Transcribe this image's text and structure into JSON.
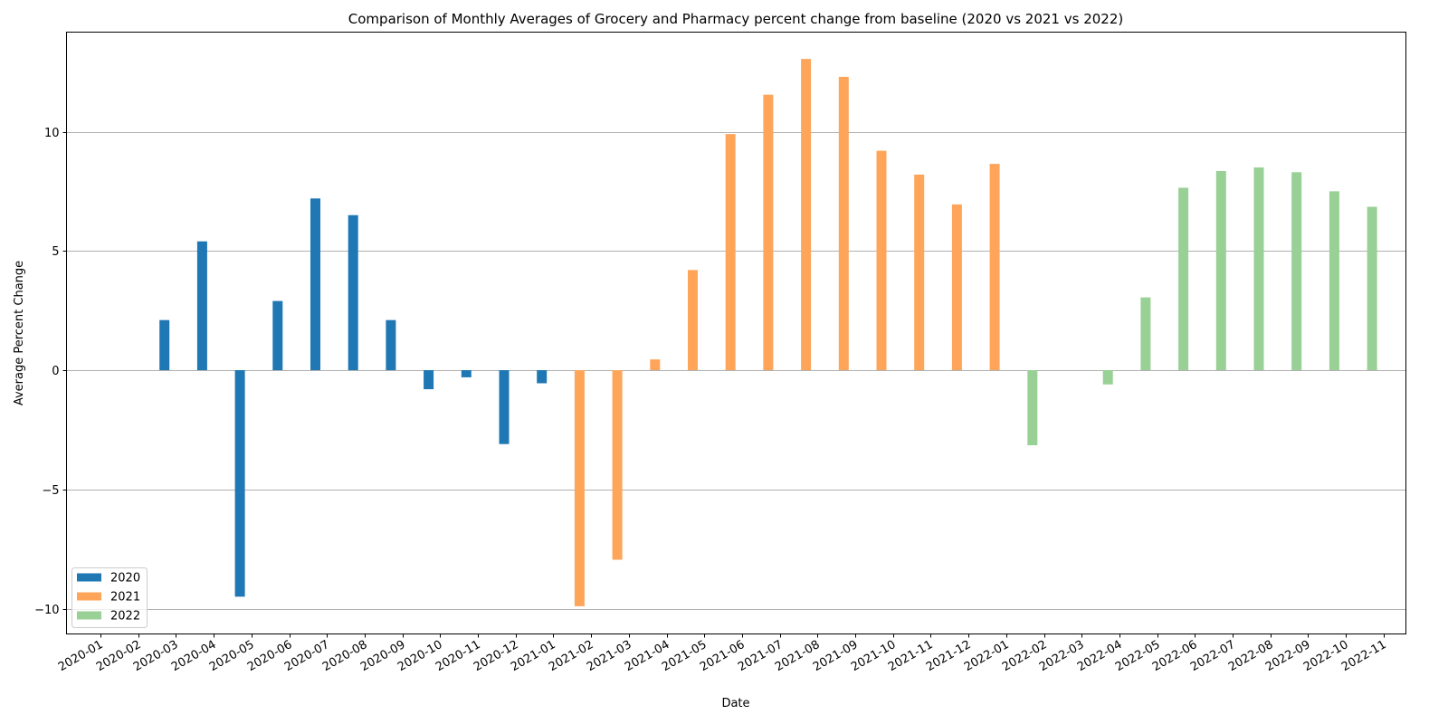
{
  "chart_data": {
    "type": "bar",
    "title": "Comparison of Monthly Averages of Grocery and Pharmacy percent change from baseline (2020 vs 2021 vs 2022)",
    "xlabel": "Date",
    "ylabel": "Average Percent Change",
    "ylim": [
      -11,
      14
    ],
    "yticks": [
      -10,
      -5,
      0,
      5,
      10
    ],
    "ytick_labels": [
      "−10",
      "−5",
      "0",
      "5",
      "10"
    ],
    "grid": "y",
    "legend_position": "lower-left",
    "categories": [
      "2020-01",
      "2020-02",
      "2020-03",
      "2020-04",
      "2020-05",
      "2020-06",
      "2020-07",
      "2020-08",
      "2020-09",
      "2020-10",
      "2020-11",
      "2020-12",
      "2021-01",
      "2021-02",
      "2021-03",
      "2021-04",
      "2021-05",
      "2021-06",
      "2021-07",
      "2021-08",
      "2021-09",
      "2021-10",
      "2021-11",
      "2021-12",
      "2022-01",
      "2022-02",
      "2022-03",
      "2022-04",
      "2022-05",
      "2022-06",
      "2022-07",
      "2022-08",
      "2022-09",
      "2022-10",
      "2022-11"
    ],
    "series": [
      {
        "name": "2020",
        "color": "#1f77b4",
        "x": [
          "2020-02",
          "2020-03",
          "2020-04",
          "2020-05",
          "2020-06",
          "2020-07",
          "2020-08",
          "2020-09",
          "2020-10",
          "2020-11",
          "2020-12"
        ],
        "values": [
          2.1,
          5.4,
          -9.5,
          2.9,
          7.2,
          6.5,
          2.1,
          -0.8,
          -0.3,
          -3.1,
          -0.55
        ]
      },
      {
        "name": "2021",
        "color": "#ffa55a",
        "x": [
          "2021-01",
          "2021-02",
          "2021-03",
          "2021-04",
          "2021-05",
          "2021-06",
          "2021-07",
          "2021-08",
          "2021-09",
          "2021-10",
          "2021-11",
          "2021-12"
        ],
        "values": [
          -9.9,
          -7.95,
          0.45,
          4.2,
          9.9,
          11.55,
          13.05,
          12.3,
          9.2,
          8.2,
          6.95,
          8.65
        ]
      },
      {
        "name": "2022",
        "color": "#98d095",
        "x": [
          "2022-01",
          "2022-03",
          "2022-04",
          "2022-05",
          "2022-06",
          "2022-07",
          "2022-08",
          "2022-09",
          "2022-10"
        ],
        "values": [
          -3.15,
          -0.6,
          3.05,
          7.65,
          8.35,
          8.5,
          8.3,
          7.5,
          6.85
        ]
      }
    ]
  }
}
